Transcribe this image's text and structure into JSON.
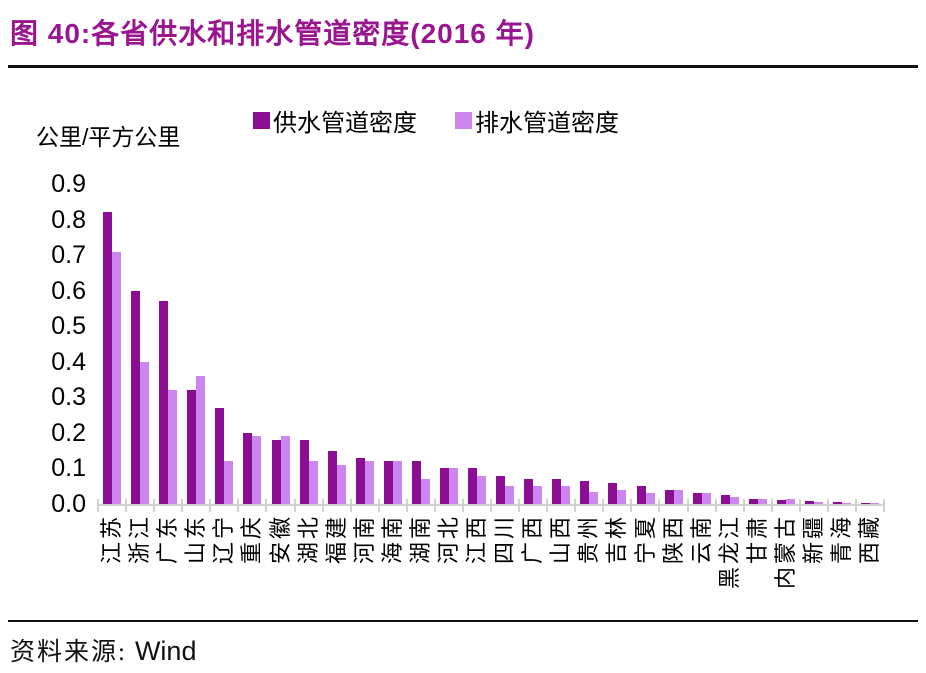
{
  "figure": {
    "title": "图 40:各省供水和排水管道密度(2016 年)",
    "source_prefix": "资料来源:",
    "source_name": "Wind"
  },
  "y_axis": {
    "unit_label": "公里/平方公里",
    "ticks": [
      "0.9",
      "0.8",
      "0.7",
      "0.6",
      "0.5",
      "0.4",
      "0.3",
      "0.2",
      "0.1",
      "0.0"
    ]
  },
  "legend": {
    "items": [
      {
        "label": "供水管道密度",
        "color": "#8A0D92"
      },
      {
        "label": "排水管道密度",
        "color": "#CC86F0"
      }
    ]
  },
  "colors": {
    "title_text": "#9A1691",
    "supply_bar": "#8A0D92",
    "drainage_bar": "#CC86F0",
    "axis_gray": "#D2D0D0",
    "rule_black": "#121212"
  },
  "chart_data": {
    "type": "bar",
    "title": "各省供水和排水管道密度(2016 年)",
    "ylabel": "公里/平方公里",
    "ylim": [
      0,
      0.9
    ],
    "ytick_step": 0.1,
    "grid": false,
    "legend_position": "top",
    "categories": [
      "江苏",
      "浙江",
      "广东",
      "山东",
      "辽宁",
      "重庆",
      "安徽",
      "湖北",
      "福建",
      "河南",
      "海南",
      "湖南",
      "河北",
      "江西",
      "四川",
      "广西",
      "山西",
      "贵州",
      "吉林",
      "宁夏",
      "陕西",
      "云南",
      "黑龙江",
      "甘肃",
      "内蒙古",
      "新疆",
      "青海",
      "西藏"
    ],
    "series": [
      {
        "name": "供水管道密度",
        "color": "#8A0D92",
        "values": [
          0.82,
          0.6,
          0.57,
          0.32,
          0.27,
          0.2,
          0.18,
          0.18,
          0.15,
          0.13,
          0.12,
          0.12,
          0.1,
          0.1,
          0.08,
          0.07,
          0.07,
          0.065,
          0.06,
          0.05,
          0.04,
          0.03,
          0.025,
          0.015,
          0.01,
          0.008,
          0.005,
          0.003
        ]
      },
      {
        "name": "排水管道密度",
        "color": "#CC86F0",
        "values": [
          0.71,
          0.4,
          0.32,
          0.36,
          0.12,
          0.19,
          0.19,
          0.12,
          0.11,
          0.12,
          0.12,
          0.07,
          0.1,
          0.08,
          0.05,
          0.05,
          0.05,
          0.035,
          0.04,
          0.03,
          0.04,
          0.03,
          0.02,
          0.015,
          0.013,
          0.006,
          0.004,
          0.002
        ]
      }
    ]
  }
}
